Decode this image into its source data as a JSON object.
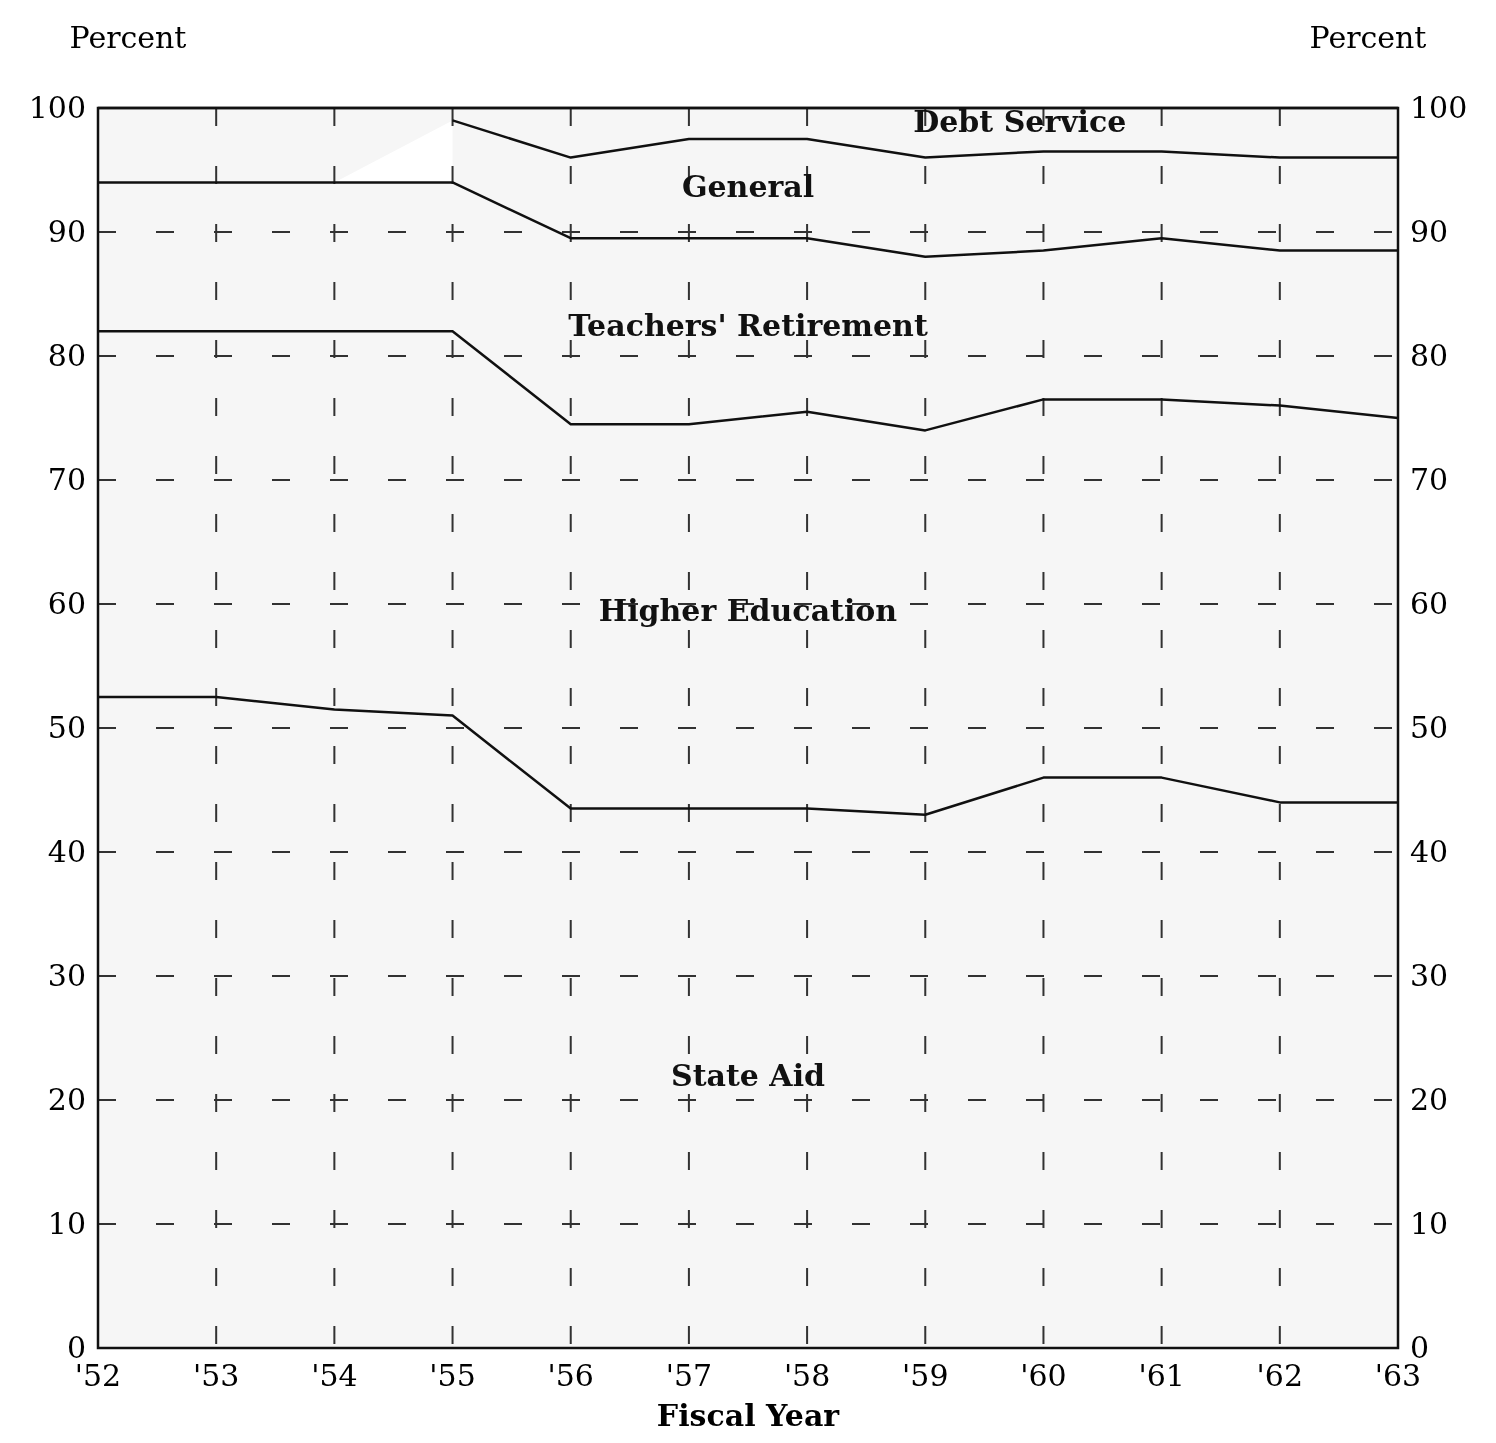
{
  "chart_data": {
    "type": "area",
    "stacked": true,
    "xlabel": "Fiscal Year",
    "ylabel": "Percent",
    "y2label": "Percent",
    "categories": [
      "'52",
      "'53",
      "'54",
      "'55",
      "'56",
      "'57",
      "'58",
      "'59",
      "'60",
      "'61",
      "'62",
      "'63"
    ],
    "series": [
      {
        "name": "State Aid",
        "color": "#111111",
        "values": [
          52.5,
          52.5,
          51.5,
          51,
          43.5,
          43.5,
          43.5,
          43,
          46,
          46,
          44,
          44
        ]
      },
      {
        "name": "Higher Education",
        "color": "#111111",
        "values": [
          29.5,
          29.5,
          30.5,
          31,
          31,
          31,
          32,
          31,
          30.5,
          30.5,
          32,
          31
        ]
      },
      {
        "name": "Teachers' Retirement",
        "color": "#111111",
        "values": [
          12,
          12,
          12,
          12,
          15,
          15,
          14,
          14,
          12,
          13,
          12.5,
          13.5
        ]
      },
      {
        "name": "General",
        "color": "#111111",
        "values": [
          null,
          null,
          null,
          5,
          6.5,
          8,
          8,
          8,
          8,
          7,
          7.5,
          7.5
        ]
      },
      {
        "name": "Debt Service",
        "color": "#111111",
        "values": [
          6,
          6,
          6,
          1,
          4,
          2.5,
          2.5,
          4,
          3.5,
          3.5,
          4,
          4
        ]
      }
    ],
    "ylim": [
      0,
      100
    ],
    "yticks": [
      0,
      10,
      20,
      30,
      40,
      50,
      60,
      70,
      80,
      90,
      100
    ],
    "y2lim": [
      0,
      100
    ],
    "y2ticks": [
      0,
      10,
      20,
      30,
      40,
      50,
      60,
      70,
      80,
      90,
      100
    ],
    "grid": true,
    "legend": false,
    "marker": "none",
    "line_style": "solid"
  }
}
